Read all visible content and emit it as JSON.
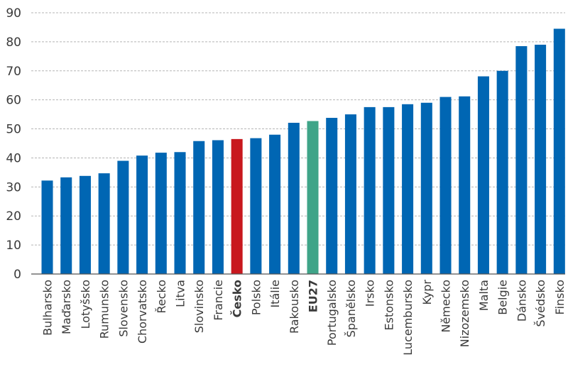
{
  "chart_data": {
    "type": "bar",
    "title": "",
    "xlabel": "",
    "ylabel": "",
    "ylim": [
      0,
      90
    ],
    "yticks": [
      0,
      10,
      20,
      30,
      40,
      50,
      60,
      70,
      80,
      90
    ],
    "grid": true,
    "legend": "none",
    "categories": [
      "Bulharsko",
      "Maďarsko",
      "Lotyšsko",
      "Rumunsko",
      "Slovensko",
      "Chorvatsko",
      "Řecko",
      "Litva",
      "Slovinsko",
      "Francie",
      "Česko",
      "Polsko",
      "Itálie",
      "Rakousko",
      "EU27",
      "Portugalsko",
      "Španělsko",
      "Irsko",
      "Estonsko",
      "Lucembursko",
      "Kypr",
      "Německo",
      "Nizozemsko",
      "Malta",
      "Belgie",
      "Dánsko",
      "Švédsko",
      "Finsko"
    ],
    "values": [
      32.2,
      33.3,
      33.8,
      34.7,
      39.0,
      40.8,
      41.8,
      42.0,
      45.8,
      46.1,
      46.5,
      46.8,
      48.0,
      52.1,
      52.7,
      53.8,
      55.0,
      57.5,
      57.5,
      58.5,
      59.0,
      61.0,
      61.2,
      68.1,
      70.0,
      78.5,
      79.0,
      84.5
    ],
    "colors": {
      "default": "#0066b3",
      "Česko": "#c8181e",
      "EU27": "#3fa488"
    },
    "highlight_bold": [
      "Česko",
      "EU27"
    ]
  }
}
